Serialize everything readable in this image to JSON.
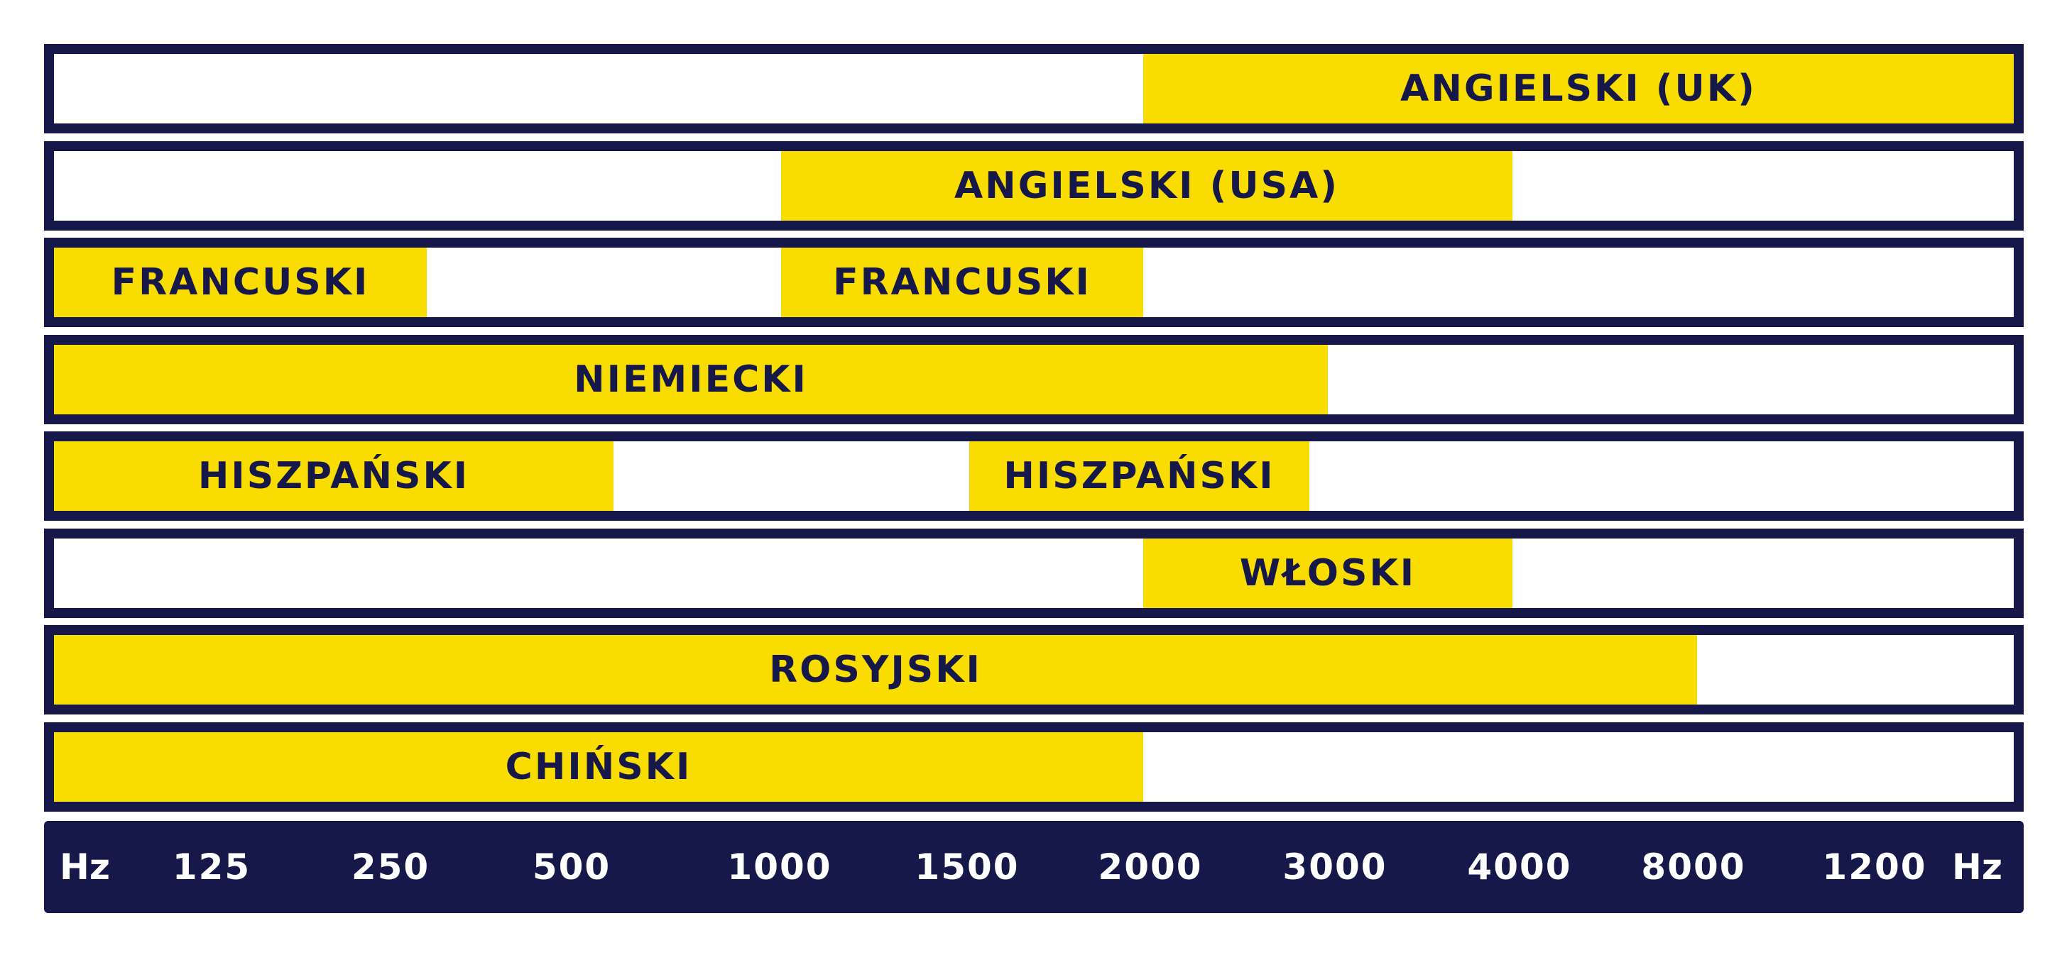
{
  "chart_data": {
    "type": "bar",
    "orientation": "horizontal-range",
    "colors": {
      "bar": "#fadd00",
      "frame": "#16184a",
      "axis_band": "#16184a",
      "text_dark": "#16184a",
      "text_light": "#ffffff"
    },
    "x_axis": {
      "unit": "Hz",
      "ticks": [
        "125",
        "250",
        "500",
        "1000",
        "1500",
        "2000",
        "3000",
        "4000",
        "8000",
        "1200"
      ]
    },
    "rows": [
      {
        "segments": [
          {
            "label": "ANGIELSKI (UK)",
            "from": 2000,
            "to": 12000
          }
        ]
      },
      {
        "segments": [
          {
            "label": "ANGIELSKI (USA)",
            "from": 1000,
            "to": 4000
          }
        ]
      },
      {
        "segments": [
          {
            "label": "FRANCUSKI",
            "from": 90,
            "to": 300
          },
          {
            "label": "FRANCUSKI",
            "from": 1000,
            "to": 2000
          }
        ]
      },
      {
        "segments": [
          {
            "label": "NIEMIECKI",
            "from": 90,
            "to": 3000
          }
        ]
      },
      {
        "segments": [
          {
            "label": "HISZPAŃSKI",
            "from": 90,
            "to": 600
          },
          {
            "label": "HISZPAŃSKI",
            "from": 1500,
            "to": 2900
          }
        ]
      },
      {
        "segments": [
          {
            "label": "WŁOSKI",
            "from": 2000,
            "to": 4000
          }
        ]
      },
      {
        "segments": [
          {
            "label": "ROSYJSKI",
            "from": 90,
            "to": 8000
          }
        ]
      },
      {
        "segments": [
          {
            "label": "CHIŃSKI",
            "from": 90,
            "to": 2000
          }
        ]
      }
    ]
  }
}
